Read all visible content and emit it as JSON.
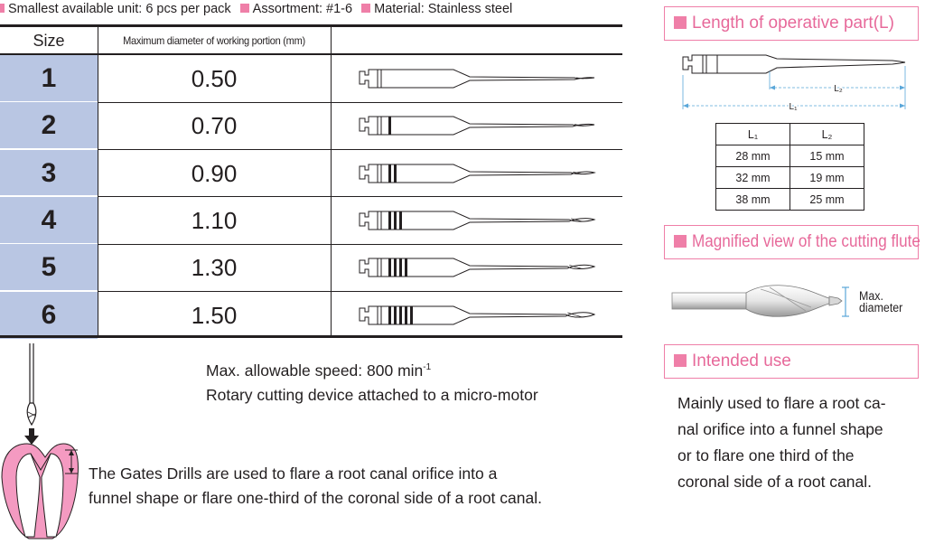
{
  "topline": [
    "Smallest available unit: 6 pcs per pack",
    "Assortment: #1-6",
    "Material: Stainless steel"
  ],
  "table": {
    "col_size": "Size",
    "col_max_diameter": "Maximum diameter of working portion (mm)",
    "rows": [
      {
        "size": "1",
        "diameter": "0.50",
        "grooves": 0
      },
      {
        "size": "2",
        "diameter": "0.70",
        "grooves": 1
      },
      {
        "size": "3",
        "diameter": "0.90",
        "grooves": 2
      },
      {
        "size": "4",
        "diameter": "1.10",
        "grooves": 3
      },
      {
        "size": "5",
        "diameter": "1.30",
        "grooves": 4
      },
      {
        "size": "6",
        "diameter": "1.50",
        "grooves": 5
      }
    ]
  },
  "speed": {
    "line1_prefix": "Max. allowable speed: 800 min",
    "line1_sup": "-1",
    "line2": "Rotary cutting device attached to a micro-motor"
  },
  "usage_text": {
    "line1": "The Gates Drills are used to flare a root canal orifice into a",
    "line2": "funnel shape or flare one-third of the coronal side of a root canal."
  },
  "length_section": {
    "title": "Length of operative part(L)",
    "l1_label": "L₁",
    "l2_label": "L₂",
    "table_header": [
      "L₁",
      "L₂"
    ],
    "table_rows": [
      [
        "28 mm",
        "15 mm"
      ],
      [
        "32 mm",
        "19 mm"
      ],
      [
        "38 mm",
        "25 mm"
      ]
    ]
  },
  "flute_section": {
    "title": "Magnified view of the cutting flute",
    "label_line1": "Max.",
    "label_line2": "diameter"
  },
  "intended_use": {
    "title": "Intended use",
    "lines": [
      "Mainly used to flare a root ca-",
      "nal orifice into a funnel shape",
      "or to flare one third of the",
      "coronal side of a root canal."
    ]
  },
  "colors": {
    "pink": "#ef7fa8",
    "pink_text": "#e7699a",
    "size_cell": "#b9c6e3",
    "tooth_pink": "#f49ac1"
  }
}
